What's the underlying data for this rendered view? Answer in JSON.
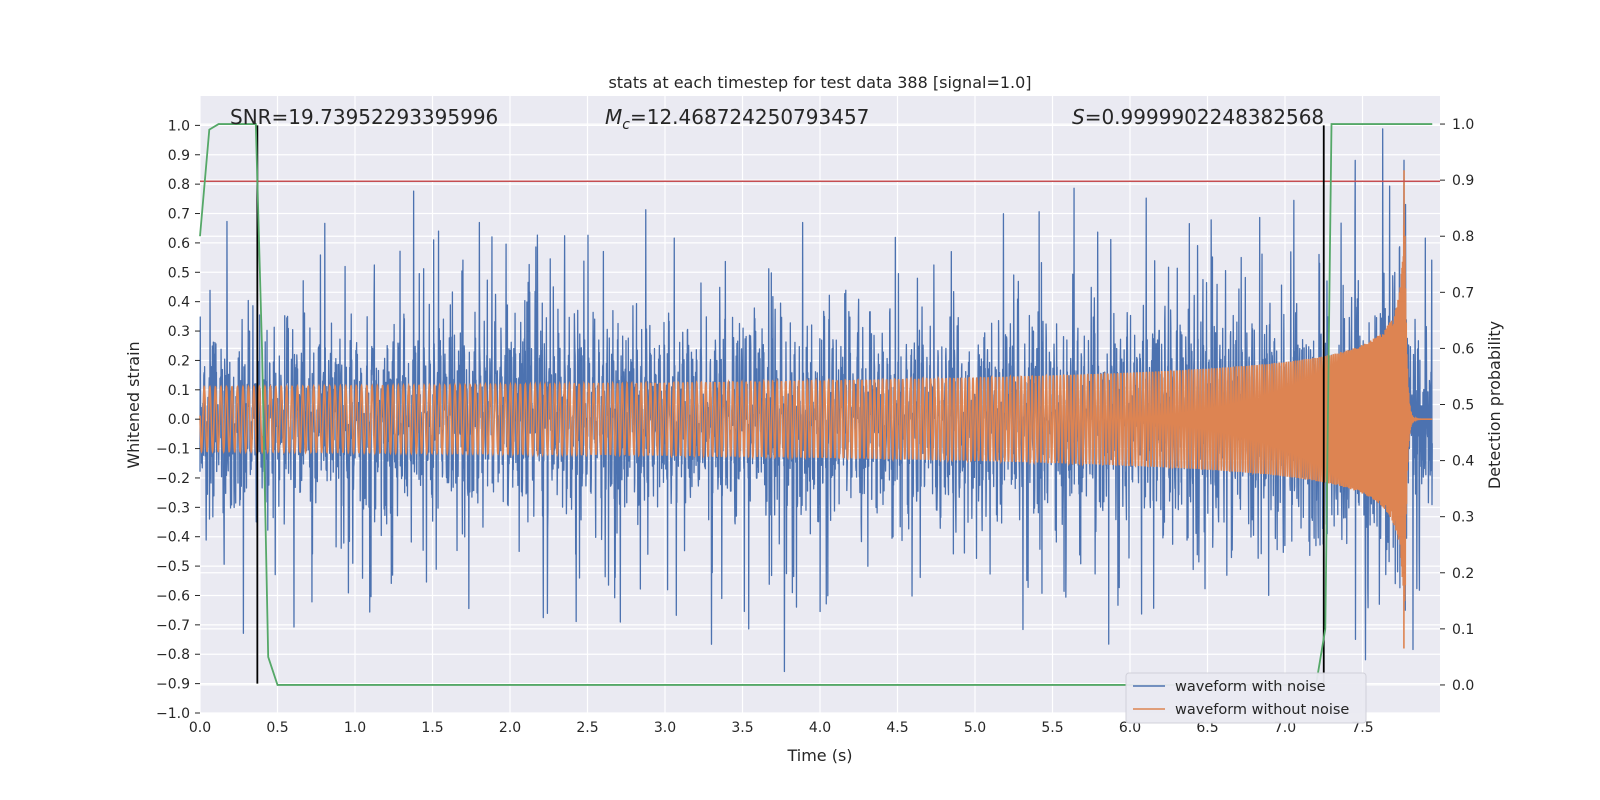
{
  "chart_data": {
    "type": "line",
    "title": "stats at each timestep for test data 388 [signal=1.0]",
    "xlabel": "Time (s)",
    "ylabel_left": "Whitened strain",
    "ylabel_right": "Detection probability",
    "xlim": [
      0.0,
      8.0
    ],
    "ylim_left": [
      -1.0,
      1.1
    ],
    "ylim_right": [
      -0.05,
      1.05
    ],
    "x_ticks": [
      "0.0",
      "0.5",
      "1.0",
      "1.5",
      "2.0",
      "2.5",
      "3.0",
      "3.5",
      "4.0",
      "4.5",
      "5.0",
      "5.5",
      "6.0",
      "6.5",
      "7.0",
      "7.5"
    ],
    "y_ticks_left": [
      "1.0",
      "0.9",
      "0.8",
      "0.7",
      "0.6",
      "0.5",
      "0.4",
      "0.3",
      "0.2",
      "0.1",
      "0.0",
      "−0.1",
      "−0.2",
      "−0.3",
      "−0.4",
      "−0.5",
      "−0.6",
      "−0.7",
      "−0.8",
      "−0.9",
      "−1.0"
    ],
    "y_ticks_right": [
      "1.0",
      "0.9",
      "0.8",
      "0.7",
      "0.6",
      "0.5",
      "0.4",
      "0.3",
      "0.2",
      "0.1",
      "0.0"
    ],
    "grid": true,
    "legend_placement": "lower-right",
    "annotations": {
      "snr": "SNR=19.73952293395996",
      "mc_symbol": "M",
      "mc_sub": "c",
      "mc_value": "=12.468724250793457",
      "s_symbol": "S",
      "s_value": "=0.9999902248382568"
    },
    "series": [
      {
        "name": "waveform with noise",
        "color": "#4c72b0",
        "axis": "left",
        "description_values": "whitened noisy strain, approx ±0.4 baseline with spikes to ±0.85"
      },
      {
        "name": "waveform without noise",
        "color": "#dd8452",
        "axis": "left",
        "chirp": {
          "start_amplitude": 0.02,
          "peak_amplitude": 0.93,
          "merger_time": 7.77,
          "ringdown_end": 7.85
        }
      },
      {
        "name": "",
        "color": "#55a868",
        "axis": "right",
        "x": [
          0.0,
          0.06,
          0.12,
          0.36,
          0.4,
          0.44,
          0.5,
          7.2,
          7.26,
          7.3,
          7.95
        ],
        "y": [
          0.8,
          0.99,
          1.0,
          1.0,
          0.6,
          0.05,
          0.0,
          0.0,
          0.1,
          1.0,
          1.0
        ]
      }
    ],
    "hline": {
      "axis": "left",
      "y": 0.81,
      "color": "#c44e52"
    },
    "vlines": [
      {
        "x": 0.37,
        "y_range_left": [
          -0.9,
          1.0
        ],
        "color": "#000000"
      },
      {
        "x": 7.25,
        "y_range_left": [
          -0.9,
          1.0
        ],
        "color": "#000000"
      }
    ]
  }
}
